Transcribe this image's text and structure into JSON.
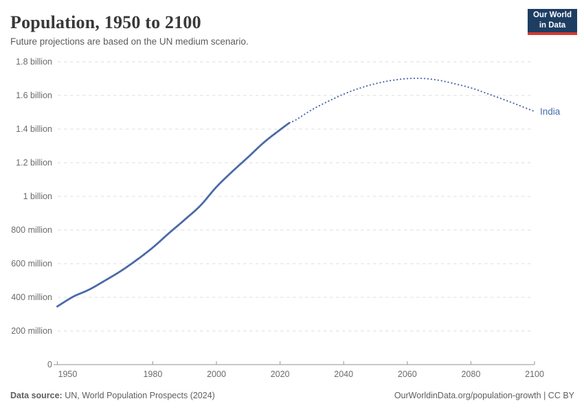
{
  "header": {
    "title": "Population, 1950 to 2100",
    "subtitle": "Future projections are based on the UN medium scenario.",
    "logo": {
      "line1": "Our World",
      "line2": "in Data"
    }
  },
  "footer": {
    "source_label": "Data source:",
    "source_text": " UN, World Population Prospects (2024)",
    "right_text": "OurWorldinData.org/population-growth | CC BY"
  },
  "colors": {
    "series_blue": "#4a69a8",
    "grid": "#dcdcdc",
    "axis": "#a6a6a6",
    "logo_navy": "#1d3d63",
    "logo_red": "#d43a2f"
  },
  "chart_data": {
    "type": "line",
    "title": "Population, 1950 to 2100",
    "subtitle": "Future projections are based on the UN medium scenario.",
    "entity": "India",
    "unit": "people",
    "values_unit": "millions",
    "xlim": [
      1950,
      2100
    ],
    "ylim_millions": [
      0,
      1800
    ],
    "grid": "horizontal dashed",
    "legend": "entity label at right end of line",
    "projection_style": "dotted after last observed year",
    "last_observed_year": 2023,
    "x_ticks": [
      1950,
      1980,
      2000,
      2020,
      2040,
      2060,
      2080,
      2100
    ],
    "y_ticks": [
      {
        "value": 0,
        "label": "0"
      },
      {
        "value": 200,
        "label": "200 million"
      },
      {
        "value": 400,
        "label": "400 million"
      },
      {
        "value": 600,
        "label": "600 million"
      },
      {
        "value": 800,
        "label": "800 million"
      },
      {
        "value": 1000,
        "label": "1 billion"
      },
      {
        "value": 1200,
        "label": "1.2 billion"
      },
      {
        "value": 1400,
        "label": "1.4 billion"
      },
      {
        "value": 1600,
        "label": "1.6 billion"
      },
      {
        "value": 1800,
        "label": "1.8 billion"
      }
    ],
    "series": [
      {
        "name": "India",
        "color": "#4a69a8",
        "years": [
          1950,
          1955,
          1960,
          1965,
          1970,
          1975,
          1980,
          1985,
          1990,
          1995,
          2000,
          2005,
          2010,
          2015,
          2020,
          2023,
          2025,
          2030,
          2035,
          2040,
          2045,
          2050,
          2055,
          2060,
          2065,
          2070,
          2075,
          2080,
          2085,
          2090,
          2095,
          2100
        ],
        "values_millions": [
          346,
          404,
          446,
          500,
          557,
          623,
          696,
          780,
          861,
          946,
          1056,
          1148,
          1234,
          1322,
          1396,
          1438,
          1455,
          1515,
          1564,
          1608,
          1643,
          1670,
          1689,
          1700,
          1701,
          1690,
          1669,
          1645,
          1612,
          1578,
          1542,
          1505
        ]
      }
    ]
  }
}
